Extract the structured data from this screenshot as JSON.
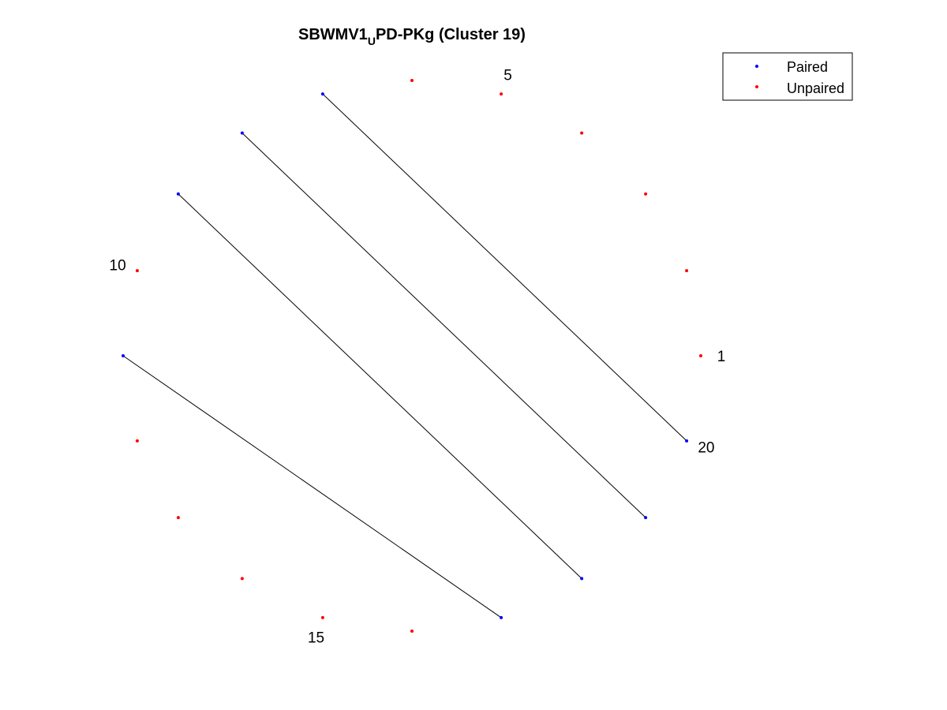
{
  "figure": {
    "title_main": "SBWMV1",
    "title_subscript": "U",
    "title_rest": "PD-PKg (Cluster 19)"
  },
  "legend": {
    "placement": "top-right",
    "items": [
      {
        "label": "Paired",
        "color": "#0000ff"
      },
      {
        "label": "Unpaired",
        "color": "#ff0000"
      }
    ]
  },
  "chart_data": {
    "type": "scatter",
    "layout": "circular",
    "node_count": 20,
    "colors": {
      "paired": "#0000ff",
      "unpaired": "#ff0000",
      "link": "#000000"
    },
    "numbered_labels": [
      {
        "node": 1,
        "text": "1"
      },
      {
        "node": 5,
        "text": "5"
      },
      {
        "node": 10,
        "text": "10"
      },
      {
        "node": 15,
        "text": "15"
      },
      {
        "node": 20,
        "text": "20"
      }
    ],
    "paired_nodes": [
      7,
      8,
      9,
      11,
      17,
      18,
      19,
      20
    ],
    "unpaired_nodes": [
      1,
      2,
      3,
      4,
      5,
      6,
      10,
      12,
      13,
      14,
      15,
      16
    ],
    "pairs": [
      [
        7,
        20
      ],
      [
        8,
        19
      ],
      [
        9,
        18
      ],
      [
        11,
        17
      ]
    ]
  }
}
